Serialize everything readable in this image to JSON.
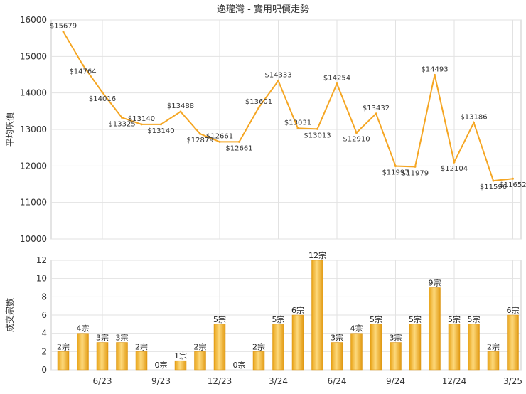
{
  "chart_data": [
    {
      "type": "line",
      "title": "逸瓏灣 - 實用呎價走勢",
      "ylabel": "平均呎價",
      "ylim": [
        10000,
        16000
      ],
      "yticks": [
        10000,
        11000,
        12000,
        13000,
        14000,
        15000,
        16000
      ],
      "grid": true,
      "series": [
        {
          "values": [
            15679,
            14764,
            14016,
            13325,
            13140,
            13140,
            13488,
            12879,
            12661,
            12661,
            13601,
            14333,
            13031,
            13013,
            14254,
            12910,
            13432,
            11997,
            11979,
            14493,
            12104,
            13186,
            11596,
            11652
          ],
          "labels": [
            "$15679",
            "$14764",
            "$14016",
            "$13325",
            "$13140",
            "$13140",
            "$13488",
            "$12879",
            "$12661",
            "$12661",
            "$13601",
            "$14333",
            "$13031",
            "$13013",
            "$14254",
            "$12910",
            "$13432",
            "$11997",
            "$11979",
            "$14493",
            "$12104",
            "$13186",
            "$11596",
            "$11652"
          ]
        }
      ],
      "colors": {
        "line": "#f5a623"
      }
    },
    {
      "type": "bar",
      "ylabel": "成交宗數",
      "ylim": [
        0,
        12
      ],
      "yticks": [
        0,
        2,
        4,
        6,
        8,
        10,
        12
      ],
      "grid": true,
      "series": [
        {
          "values": [
            2,
            4,
            3,
            3,
            2,
            0,
            1,
            2,
            5,
            0,
            2,
            5,
            6,
            12,
            3,
            4,
            5,
            3,
            5,
            9,
            5,
            5,
            2,
            6
          ],
          "labels": [
            "2宗",
            "4宗",
            "3宗",
            "3宗",
            "2宗",
            "0宗",
            "1宗",
            "2宗",
            "5宗",
            "0宗",
            "2宗",
            "5宗",
            "6宗",
            "12宗",
            "3宗",
            "4宗",
            "5宗",
            "3宗",
            "5宗",
            "9宗",
            "5宗",
            "5宗",
            "2宗",
            "6宗"
          ]
        }
      ],
      "xticks": [
        {
          "label": "6/23",
          "index": 2
        },
        {
          "label": "9/23",
          "index": 5
        },
        {
          "label": "12/23",
          "index": 8
        },
        {
          "label": "3/24",
          "index": 11
        },
        {
          "label": "6/24",
          "index": 14
        },
        {
          "label": "9/24",
          "index": 17
        },
        {
          "label": "12/24",
          "index": 20
        },
        {
          "label": "3/25",
          "index": 23
        }
      ],
      "colors": {
        "bar": "#f5b32a",
        "bar_light": "#fbd77a",
        "bar_dark": "#e29a12"
      }
    }
  ]
}
